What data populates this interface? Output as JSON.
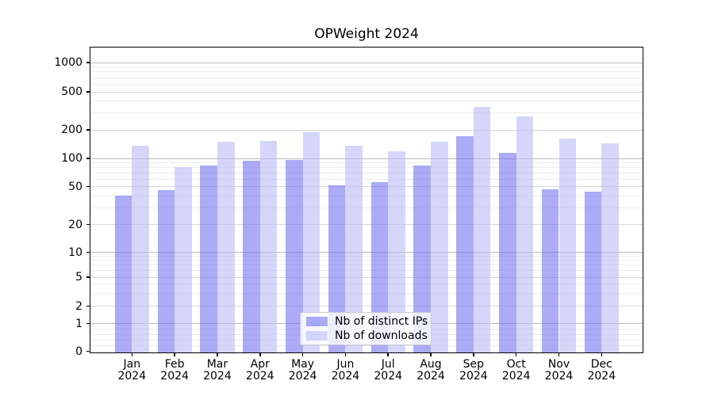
{
  "chart_data": {
    "type": "bar",
    "title": "OPWeight 2024",
    "categories": [
      "Jan 2024",
      "Feb 2024",
      "Mar 2024",
      "Apr 2024",
      "May 2024",
      "Jun 2024",
      "Jul 2024",
      "Aug 2024",
      "Sep 2024",
      "Oct 2024",
      "Nov 2024",
      "Dec 2024"
    ],
    "x_tick_months": [
      "Jan",
      "Feb",
      "Mar",
      "Apr",
      "May",
      "Jun",
      "Jul",
      "Aug",
      "Sep",
      "Oct",
      "Nov",
      "Dec"
    ],
    "x_tick_year": "2024",
    "series": [
      {
        "name": "Nb of distinct IPs",
        "color": "#6666ee",
        "fill_opacity": 0.55,
        "values": [
          40,
          46,
          84,
          95,
          96,
          51,
          56,
          84,
          170,
          114,
          47,
          44
        ]
      },
      {
        "name": "Nb of downloads",
        "color": "#bbbbf8",
        "fill_opacity": 0.6,
        "values": [
          137,
          80,
          150,
          153,
          190,
          135,
          120,
          150,
          345,
          277,
          162,
          145
        ]
      }
    ],
    "y_ticks": [
      0,
      1,
      2,
      5,
      10,
      20,
      50,
      100,
      200,
      500,
      1000
    ],
    "ylim": [
      0,
      1500
    ],
    "yscale": "symlog",
    "grid": "horizontal major+minor",
    "legend_position": "lower center",
    "colors": {
      "grid_decade": "#bcbcbc",
      "grid_mid": "#d9d9d9",
      "grid_minor": "#ededed",
      "axis": "#000000",
      "background": "#ffffff"
    }
  }
}
